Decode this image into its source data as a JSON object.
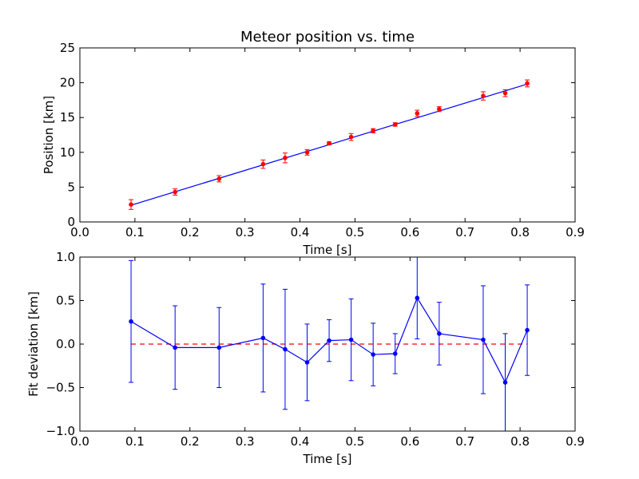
{
  "chart_data": [
    {
      "type": "scatter",
      "title": "Meteor position vs. time",
      "xlabel": "Time [s]",
      "ylabel": "Position [km]",
      "xlim": [
        0.0,
        0.9
      ],
      "ylim": [
        0,
        25
      ],
      "xticks": [
        "0.0",
        "0.1",
        "0.2",
        "0.3",
        "0.4",
        "0.5",
        "0.6",
        "0.7",
        "0.8",
        "0.9"
      ],
      "yticks": [
        "0",
        "5",
        "10",
        "15",
        "20",
        "25"
      ],
      "series": [
        {
          "kind": "errorbar",
          "color": "#ff0000",
          "x": [
            0.093,
            0.173,
            0.253,
            0.333,
            0.373,
            0.413,
            0.453,
            0.493,
            0.533,
            0.573,
            0.613,
            0.653,
            0.733,
            0.773,
            0.813
          ],
          "y": [
            2.5,
            4.3,
            6.2,
            8.3,
            9.2,
            10.0,
            11.3,
            12.2,
            13.1,
            14.0,
            15.6,
            16.2,
            18.1,
            18.5,
            19.9
          ],
          "err": [
            0.7,
            0.45,
            0.45,
            0.6,
            0.7,
            0.4,
            0.2,
            0.5,
            0.3,
            0.25,
            0.45,
            0.35,
            0.6,
            0.5,
            0.5
          ]
        },
        {
          "kind": "line",
          "color": "#0000ff",
          "x": [
            0.093,
            0.813
          ],
          "y": [
            2.4,
            19.8
          ]
        }
      ]
    },
    {
      "type": "line",
      "title": "",
      "xlabel": "Time [s]",
      "ylabel": "Fit deviation [km]",
      "xlim": [
        0.0,
        0.9
      ],
      "ylim": [
        -1.0,
        1.0
      ],
      "xticks": [
        "0.0",
        "0.1",
        "0.2",
        "0.3",
        "0.4",
        "0.5",
        "0.6",
        "0.7",
        "0.8",
        "0.9"
      ],
      "yticks": [
        "1.0",
        "0.5",
        "0.0",
        "−0.5",
        "−1.0"
      ],
      "series": [
        {
          "kind": "errorbar-line",
          "color": "#0000ff",
          "x": [
            0.093,
            0.173,
            0.253,
            0.333,
            0.373,
            0.413,
            0.453,
            0.493,
            0.533,
            0.573,
            0.613,
            0.653,
            0.733,
            0.773,
            0.813
          ],
          "y": [
            0.26,
            -0.04,
            -0.04,
            0.07,
            -0.06,
            -0.21,
            0.04,
            0.05,
            -0.12,
            -0.11,
            0.53,
            0.12,
            0.05,
            -0.44,
            0.16
          ],
          "err": [
            0.7,
            0.48,
            0.46,
            0.62,
            0.69,
            0.44,
            0.24,
            0.47,
            0.36,
            0.23,
            0.47,
            0.36,
            0.62,
            0.56,
            0.52
          ]
        },
        {
          "kind": "dashed-line",
          "color": "#ff0000",
          "x": [
            0.093,
            0.813
          ],
          "y": [
            0.0,
            0.0
          ]
        }
      ]
    }
  ]
}
